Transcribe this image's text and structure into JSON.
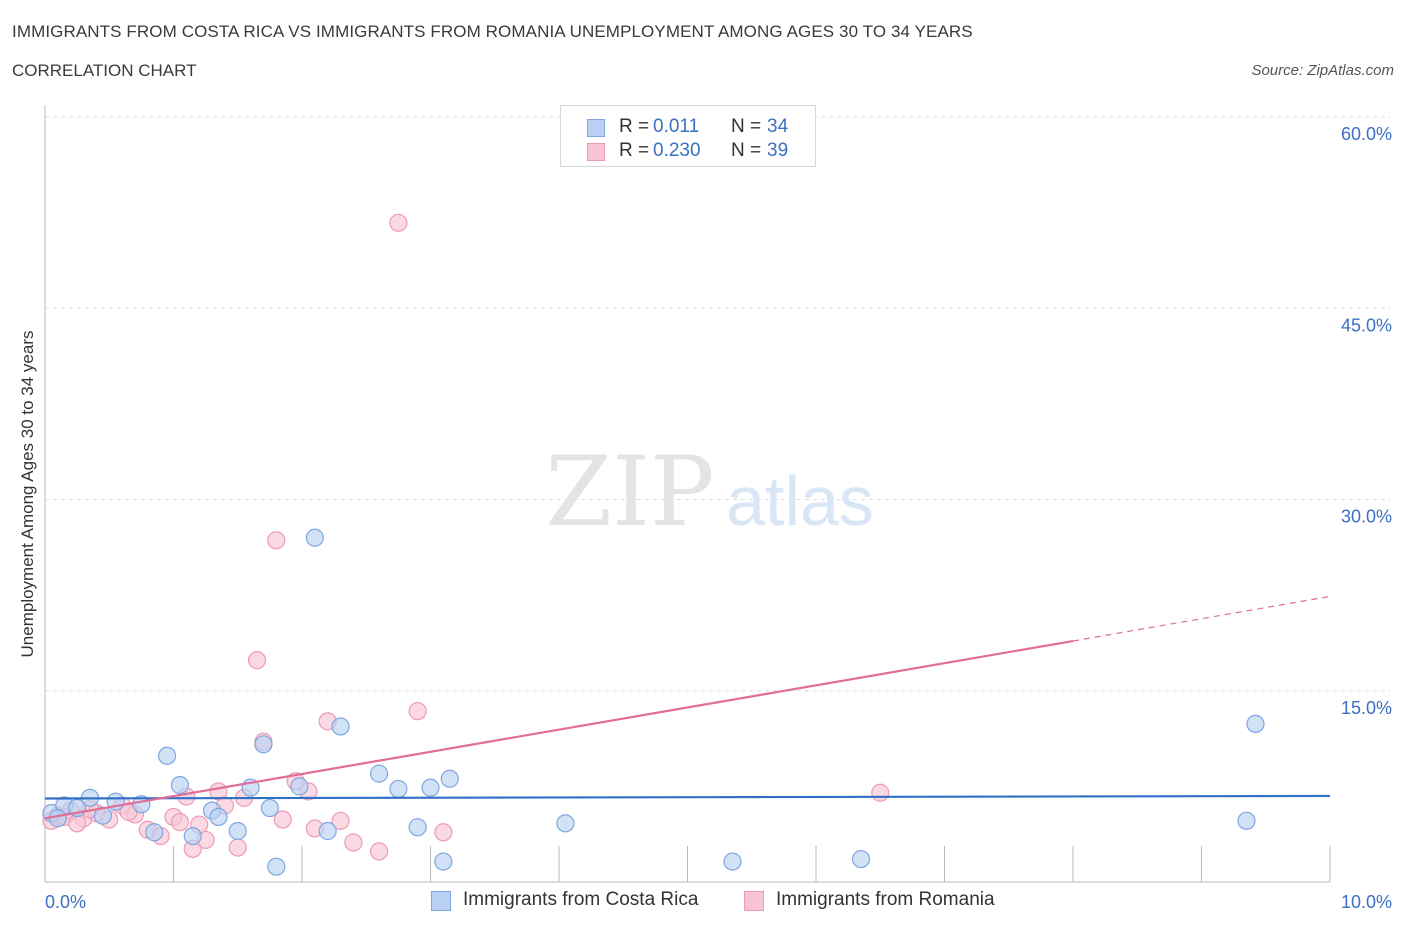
{
  "header": {
    "title": "IMMIGRANTS FROM COSTA RICA VS IMMIGRANTS FROM ROMANIA UNEMPLOYMENT AMONG AGES 30 TO 34 YEARS",
    "subtitle": "CORRELATION CHART",
    "source": "Source: ZipAtlas.com"
  },
  "legend": {
    "series1": {
      "r_label": "R = ",
      "r_value": "0.011",
      "n_label": "N = ",
      "n_value": "34"
    },
    "series2": {
      "r_label": "R = ",
      "r_value": "0.230",
      "n_label": "N = ",
      "n_value": "39"
    }
  },
  "bottom_legend": {
    "series1": "Immigrants from Costa Rica",
    "series2": "Immigrants from Romania"
  },
  "watermark": {
    "zip": "ZIP",
    "atlas": "atlas"
  },
  "colors": {
    "blue_fill": "#b9d2f3",
    "blue_stroke": "#7ea6e0",
    "blue_line": "#2f6fc6",
    "pink_fill": "#f7c4d4",
    "pink_stroke": "#ec9bb7",
    "pink_line": "#e06e97",
    "axis_text": "#3b6fc4",
    "grid": "#dddddd"
  },
  "chart_data": {
    "type": "scatter",
    "title": "IMMIGRANTS FROM COSTA RICA VS IMMIGRANTS FROM ROMANIA UNEMPLOYMENT AMONG AGES 30 TO 34 YEARS",
    "xlabel": "",
    "ylabel": "Unemployment Among Ages 30 to 34 years",
    "xlim": [
      0,
      10
    ],
    "ylim": [
      0,
      60
    ],
    "x_tick_labels": [
      "0.0%",
      "10.0%"
    ],
    "y_ticks": [
      15,
      30,
      45,
      60
    ],
    "y_tick_labels": [
      "15.0%",
      "30.0%",
      "45.0%",
      "60.0%"
    ],
    "grid": true,
    "series": [
      {
        "name": "Immigrants from Costa Rica",
        "color": "blue",
        "points": [
          [
            0.05,
            5.4
          ],
          [
            0.15,
            6.0
          ],
          [
            0.25,
            5.8
          ],
          [
            0.35,
            6.6
          ],
          [
            0.45,
            5.2
          ],
          [
            0.55,
            6.3
          ],
          [
            0.75,
            6.1
          ],
          [
            0.85,
            3.9
          ],
          [
            0.95,
            9.9
          ],
          [
            1.05,
            7.6
          ],
          [
            1.15,
            3.6
          ],
          [
            1.3,
            5.6
          ],
          [
            1.35,
            5.1
          ],
          [
            1.5,
            4.0
          ],
          [
            1.6,
            7.4
          ],
          [
            1.7,
            10.8
          ],
          [
            1.75,
            5.8
          ],
          [
            1.8,
            1.2
          ],
          [
            1.98,
            7.5
          ],
          [
            2.1,
            27.0
          ],
          [
            2.2,
            4.0
          ],
          [
            2.3,
            12.2
          ],
          [
            2.6,
            8.5
          ],
          [
            2.75,
            7.3
          ],
          [
            2.9,
            4.3
          ],
          [
            3.0,
            7.4
          ],
          [
            3.1,
            1.6
          ],
          [
            3.15,
            8.1
          ],
          [
            4.05,
            4.6
          ],
          [
            5.35,
            1.6
          ],
          [
            6.35,
            1.8
          ],
          [
            9.35,
            4.8
          ],
          [
            9.42,
            12.4
          ],
          [
            0.1,
            5.0
          ]
        ],
        "trend": {
          "x": [
            0,
            10
          ],
          "y": [
            6.55,
            6.75
          ]
        },
        "r": 0.011,
        "n": 34
      },
      {
        "name": "Immigrants from Romania",
        "color": "pink",
        "points": [
          [
            0.05,
            4.8
          ],
          [
            0.1,
            5.2
          ],
          [
            0.2,
            5.6
          ],
          [
            0.3,
            5.0
          ],
          [
            0.4,
            5.4
          ],
          [
            0.5,
            4.9
          ],
          [
            0.6,
            6.0
          ],
          [
            0.7,
            5.3
          ],
          [
            0.8,
            4.1
          ],
          [
            0.9,
            3.6
          ],
          [
            1.0,
            5.1
          ],
          [
            1.05,
            4.7
          ],
          [
            1.1,
            6.7
          ],
          [
            1.15,
            2.6
          ],
          [
            1.25,
            3.3
          ],
          [
            1.35,
            7.1
          ],
          [
            1.4,
            6.0
          ],
          [
            1.5,
            2.7
          ],
          [
            1.55,
            6.6
          ],
          [
            1.65,
            17.4
          ],
          [
            1.7,
            11.0
          ],
          [
            1.8,
            26.8
          ],
          [
            1.85,
            4.9
          ],
          [
            1.95,
            7.9
          ],
          [
            2.05,
            7.1
          ],
          [
            2.1,
            4.2
          ],
          [
            2.2,
            12.6
          ],
          [
            2.3,
            4.8
          ],
          [
            2.4,
            3.1
          ],
          [
            2.6,
            2.4
          ],
          [
            2.75,
            51.7
          ],
          [
            2.9,
            13.4
          ],
          [
            3.1,
            3.9
          ],
          [
            6.5,
            7.0
          ],
          [
            0.15,
            5.1
          ],
          [
            0.25,
            4.6
          ],
          [
            0.35,
            5.7
          ],
          [
            0.65,
            5.5
          ],
          [
            1.2,
            4.5
          ]
        ],
        "trend": {
          "x": [
            0,
            8
          ],
          "y": [
            5.0,
            18.9
          ]
        },
        "trend_dashed": {
          "x": [
            8,
            10
          ],
          "y": [
            18.9,
            22.4
          ]
        },
        "r": 0.23,
        "n": 39
      }
    ]
  }
}
